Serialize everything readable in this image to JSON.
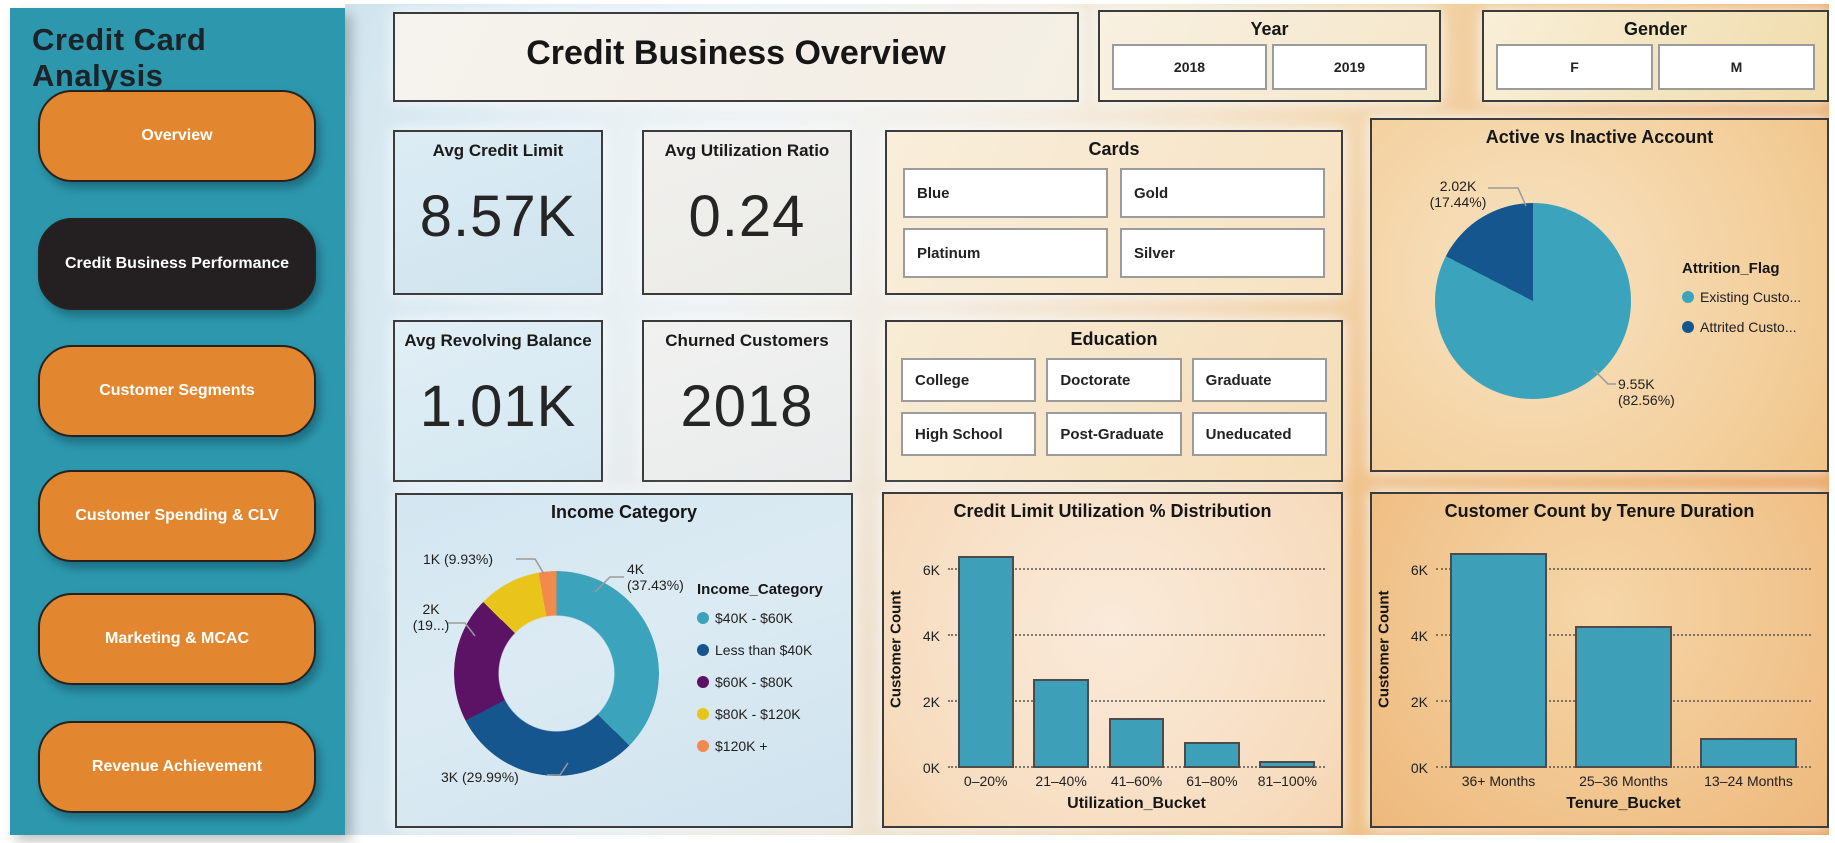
{
  "sidebar": {
    "title": "Credit Card Analysis",
    "items": [
      {
        "label": "Overview",
        "active": false
      },
      {
        "label": "Credit Business Performance",
        "active": true
      },
      {
        "label": "Customer Segments",
        "active": false
      },
      {
        "label": "Customer Spending & CLV",
        "active": false
      },
      {
        "label": "Marketing & MCAC",
        "active": false
      },
      {
        "label": "Revenue Achievement",
        "active": false
      }
    ]
  },
  "header": {
    "title": "Credit Business Overview"
  },
  "slicers": {
    "year": {
      "title": "Year",
      "options": [
        "2018",
        "2019"
      ]
    },
    "gender": {
      "title": "Gender",
      "options": [
        "F",
        "M"
      ]
    },
    "cards": {
      "title": "Cards",
      "options": [
        "Blue",
        "Gold",
        "Platinum",
        "Silver"
      ]
    },
    "education": {
      "title": "Education",
      "options": [
        "College",
        "Doctorate",
        "Graduate",
        "High School",
        "Post-Graduate",
        "Uneducated"
      ]
    }
  },
  "kpis": [
    {
      "label": "Avg Credit Limit",
      "value": "8.57K"
    },
    {
      "label": "Avg Utilization Ratio",
      "value": "0.24"
    },
    {
      "label": "Avg Revolving Balance",
      "value": "1.01K"
    },
    {
      "label": "Churned Customers",
      "value": "2018"
    }
  ],
  "colors": {
    "sidebar_teal": "#2D98AD",
    "nav_orange": "#E2872F",
    "nav_active_dark": "#242021",
    "bar_teal": "#3D9FB8",
    "pie_teal": "#3BA3BC",
    "pie_dark_blue": "#15568E",
    "donut_purple": "#5C1365",
    "donut_yellow": "#E9C41A",
    "donut_orange": "#F28A4D"
  },
  "chart_data": [
    {
      "id": "attrition",
      "type": "pie",
      "title": "Active vs Inactive Account",
      "legend_title": "Attrition_Flag",
      "legend_position": "right",
      "slices": [
        {
          "label": "Existing Custo...",
          "value_label": "9.55K",
          "pct": 82.56,
          "pct_label": "(82.56%)",
          "color": "#3BA3BC"
        },
        {
          "label": "Attrited Custo...",
          "value_label": "2.02K",
          "pct": 17.44,
          "pct_label": "(17.44%)",
          "color": "#15568E"
        }
      ]
    },
    {
      "id": "income",
      "type": "donut",
      "title": "Income Category",
      "legend_title": "Income_Category",
      "legend_position": "right",
      "slices": [
        {
          "label": "$40K - $60K",
          "value_label": "4K",
          "pct": 37.43,
          "pct_label": "(37.43%)",
          "color": "#3BA3BC"
        },
        {
          "label": "Less than $40K",
          "value_label": "3K",
          "pct": 29.99,
          "pct_label": "(29.99%)",
          "color": "#15568E"
        },
        {
          "label": "$60K - $80K",
          "value_label": "2K",
          "pct": 19.86,
          "pct_label": "(19...)",
          "color": "#5C1365"
        },
        {
          "label": "$80K - $120K",
          "value_label": "1K",
          "pct": 9.93,
          "pct_label": "(9.93%)",
          "color": "#E9C41A"
        },
        {
          "label": "$120K +",
          "value_label": "",
          "pct": 2.79,
          "pct_label": "",
          "color": "#F28A4D"
        }
      ]
    },
    {
      "id": "utilization",
      "type": "bar",
      "title": "Credit Limit Utilization % Distribution",
      "xlabel": "Utilization_Bucket",
      "ylabel": "Customer Count",
      "categories": [
        "0–20%",
        "21–40%",
        "41–60%",
        "61–80%",
        "81–100%"
      ],
      "values": [
        6.4,
        2.7,
        1.5,
        0.8,
        0.2
      ],
      "value_unit": "K",
      "yticks": [
        0,
        2,
        4,
        6
      ],
      "ytick_labels": [
        "0K",
        "2K",
        "4K",
        "6K"
      ],
      "ylim": [
        0,
        7.2
      ],
      "bar_color": "#3D9FB8",
      "grid": "horizontal-dotted"
    },
    {
      "id": "tenure",
      "type": "bar",
      "title": "Customer Count by Tenure Duration",
      "xlabel": "Tenure_Bucket",
      "ylabel": "Customer Count",
      "categories": [
        "36+ Months",
        "25–36 Months",
        "13–24 Months"
      ],
      "values": [
        6.5,
        4.3,
        0.9
      ],
      "value_unit": "K",
      "yticks": [
        0,
        2,
        4,
        6
      ],
      "ytick_labels": [
        "0K",
        "2K",
        "4K",
        "6K"
      ],
      "ylim": [
        0,
        7.2
      ],
      "bar_color": "#3D9FB8",
      "grid": "horizontal-dotted"
    }
  ]
}
